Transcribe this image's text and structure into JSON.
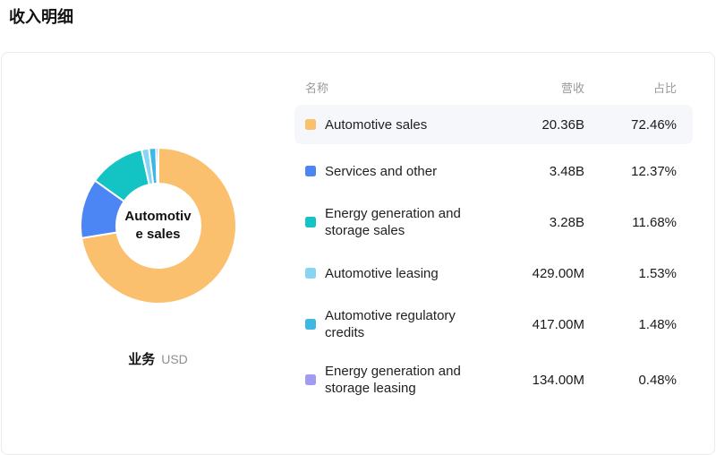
{
  "page": {
    "title": "收入明细"
  },
  "chart_data": {
    "type": "pie",
    "variant": "donut",
    "center_label": "Automotive sales",
    "footer": {
      "label": "业务",
      "unit": "USD"
    },
    "legend_position": "right-table",
    "series": [
      {
        "name": "Automotive sales",
        "revenue": "20.36B",
        "percent_label": "72.46%",
        "value": 72.46,
        "color": "#FAC06E"
      },
      {
        "name": "Services and other",
        "revenue": "3.48B",
        "percent_label": "12.37%",
        "value": 12.37,
        "color": "#4C86F5"
      },
      {
        "name": "Energy generation and storage sales",
        "revenue": "3.28B",
        "percent_label": "11.68%",
        "value": 11.68,
        "color": "#14C3C3"
      },
      {
        "name": "Automotive leasing",
        "revenue": "429.00M",
        "percent_label": "1.53%",
        "value": 1.53,
        "color": "#87D5F3"
      },
      {
        "name": "Automotive regulatory credits",
        "revenue": "417.00M",
        "percent_label": "1.48%",
        "value": 1.48,
        "color": "#3DB8E0"
      },
      {
        "name": "Energy generation and storage leasing",
        "revenue": "134.00M",
        "percent_label": "0.48%",
        "value": 0.48,
        "color": "#A29BF2"
      }
    ]
  },
  "table": {
    "headers": {
      "name": "名称",
      "revenue": "营收",
      "percent": "占比"
    },
    "highlighted_row_index": 0
  }
}
